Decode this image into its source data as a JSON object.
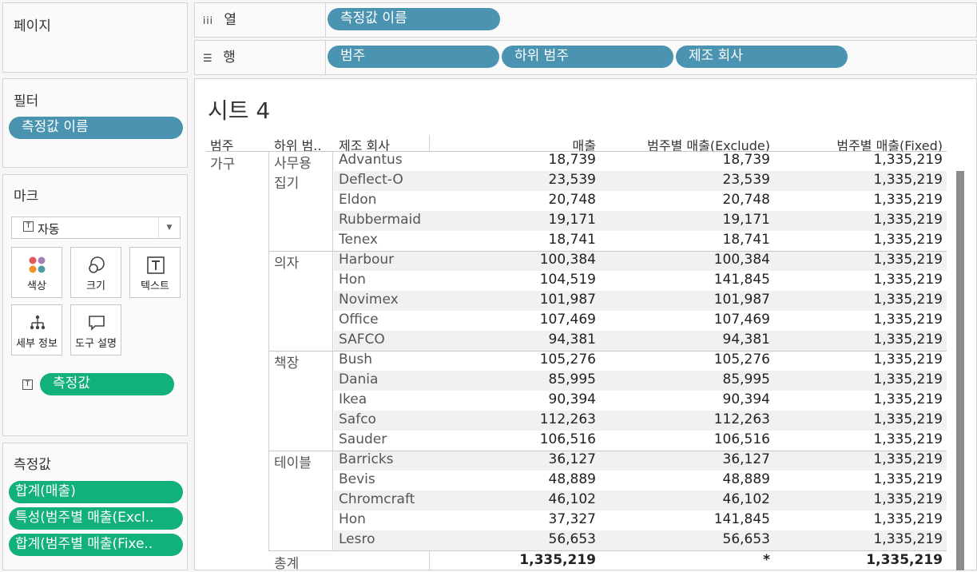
{
  "left": {
    "pages_title": "페이지",
    "filters_title": "필터",
    "filters": [
      "측정값 이름"
    ],
    "marks_title": "마크",
    "mark_type": "자동",
    "mark_cards": [
      {
        "label": "색상",
        "icon": "color-icon"
      },
      {
        "label": "크기",
        "icon": "size-icon"
      },
      {
        "label": "텍스트",
        "icon": "text-icon"
      },
      {
        "label": "세부 정보",
        "icon": "detail-icon"
      },
      {
        "label": "도구 설명",
        "icon": "tooltip-icon"
      }
    ],
    "mark_pill": "측정값",
    "measures_title": "측정값",
    "measures": [
      "합계(매출)",
      "특성(범주별 매출(Excl..",
      "합계(범주별 매출(Fixe.."
    ]
  },
  "shelves": {
    "columns_label": "열",
    "columns": [
      "측정값 이름"
    ],
    "rows_label": "행",
    "rows": [
      "범주",
      "하위 범주",
      "제조 회사"
    ]
  },
  "sheet": {
    "title": "시트 4",
    "headers": [
      "범주",
      "하위 범..",
      "제조 회사",
      "매출",
      "범주별 매출(Exclude)",
      "범주별 매출(Fixed)"
    ],
    "category": "가구",
    "rows": [
      {
        "sub": "사무용",
        "mfr": "Advantus",
        "sales": "18,739",
        "excl": "18,739",
        "fixed": "1,335,219"
      },
      {
        "sub": "집기",
        "mfr": "Deflect-O",
        "sales": "23,539",
        "excl": "23,539",
        "fixed": "1,335,219"
      },
      {
        "sub": "",
        "mfr": "Eldon",
        "sales": "20,748",
        "excl": "20,748",
        "fixed": "1,335,219"
      },
      {
        "sub": "",
        "mfr": "Rubbermaid",
        "sales": "19,171",
        "excl": "19,171",
        "fixed": "1,335,219"
      },
      {
        "sub": "",
        "mfr": "Tenex",
        "sales": "18,741",
        "excl": "18,741",
        "fixed": "1,335,219"
      },
      {
        "sub": "의자",
        "mfr": "Harbour",
        "sales": "100,384",
        "excl": "100,384",
        "fixed": "1,335,219"
      },
      {
        "sub": "",
        "mfr": "Hon",
        "sales": "104,519",
        "excl": "141,845",
        "fixed": "1,335,219"
      },
      {
        "sub": "",
        "mfr": "Novimex",
        "sales": "101,987",
        "excl": "101,987",
        "fixed": "1,335,219"
      },
      {
        "sub": "",
        "mfr": "Office",
        "sales": "107,469",
        "excl": "107,469",
        "fixed": "1,335,219"
      },
      {
        "sub": "",
        "mfr": "SAFCO",
        "sales": "94,381",
        "excl": "94,381",
        "fixed": "1,335,219"
      },
      {
        "sub": "책장",
        "mfr": "Bush",
        "sales": "105,276",
        "excl": "105,276",
        "fixed": "1,335,219"
      },
      {
        "sub": "",
        "mfr": "Dania",
        "sales": "85,995",
        "excl": "85,995",
        "fixed": "1,335,219"
      },
      {
        "sub": "",
        "mfr": "Ikea",
        "sales": "90,394",
        "excl": "90,394",
        "fixed": "1,335,219"
      },
      {
        "sub": "",
        "mfr": "Safco",
        "sales": "112,263",
        "excl": "112,263",
        "fixed": "1,335,219"
      },
      {
        "sub": "",
        "mfr": "Sauder",
        "sales": "106,516",
        "excl": "106,516",
        "fixed": "1,335,219"
      },
      {
        "sub": "테이블",
        "mfr": "Barricks",
        "sales": "36,127",
        "excl": "36,127",
        "fixed": "1,335,219"
      },
      {
        "sub": "",
        "mfr": "Bevis",
        "sales": "48,889",
        "excl": "48,889",
        "fixed": "1,335,219"
      },
      {
        "sub": "",
        "mfr": "Chromcraft",
        "sales": "46,102",
        "excl": "46,102",
        "fixed": "1,335,219"
      },
      {
        "sub": "",
        "mfr": "Hon",
        "sales": "37,327",
        "excl": "141,845",
        "fixed": "1,335,219"
      },
      {
        "sub": "",
        "mfr": "Lesro",
        "sales": "56,653",
        "excl": "56,653",
        "fixed": "1,335,219"
      }
    ],
    "total": {
      "label": "총계",
      "sales": "1,335,219",
      "excl": "*",
      "fixed": "1,335,219"
    }
  },
  "colors": {
    "blue_pill": "#4a94b1",
    "green_pill": "#12b07a"
  }
}
